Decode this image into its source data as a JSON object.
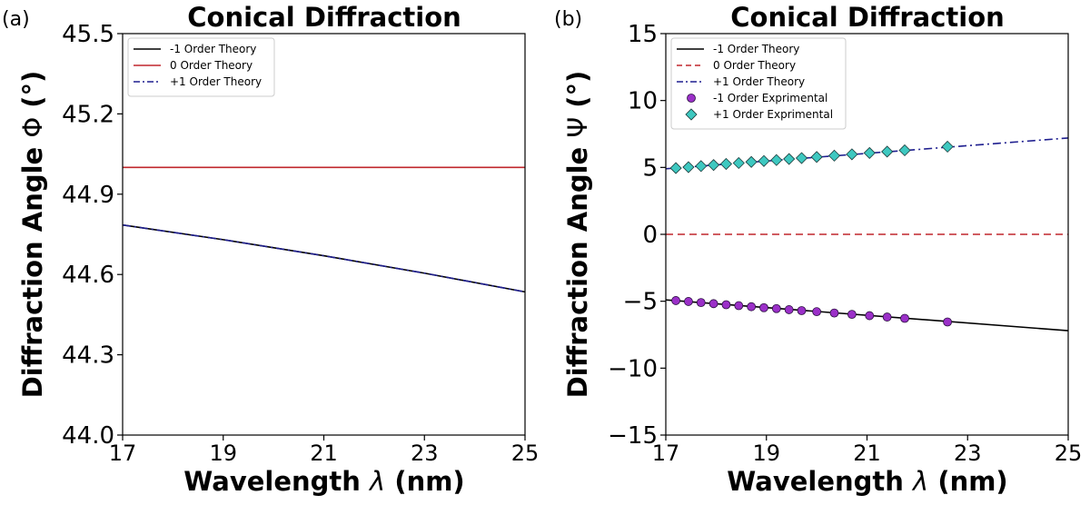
{
  "chart_data": [
    {
      "panel_label": "(a)",
      "type": "line",
      "title": "Conical Diffraction",
      "xlabel": "Wavelength",
      "xlabel_symbol": "λ",
      "xlabel_unit": "(nm)",
      "ylabel": "Diffraction Angle",
      "ylabel_symbol": "Φ",
      "ylabel_unit": "(°)",
      "xlim": [
        17,
        25
      ],
      "ylim": [
        44.0,
        45.5
      ],
      "xticks": [
        17,
        19,
        21,
        23,
        25
      ],
      "xtick_labels": [
        "17",
        "19",
        "21",
        "23",
        "25"
      ],
      "yticks": [
        44.0,
        44.3,
        44.6,
        44.9,
        45.2,
        45.5
      ],
      "ytick_labels": [
        "44.0",
        "44.3",
        "44.6",
        "44.9",
        "45.2",
        "45.5"
      ],
      "legend_position": "top-left",
      "series": [
        {
          "name": "-1 Order Theory",
          "color": "#000000",
          "style": "solid",
          "x": [
            17,
            19,
            21,
            23,
            25
          ],
          "y": [
            44.785,
            44.73,
            44.67,
            44.605,
            44.535
          ]
        },
        {
          "name": "0 Order Theory",
          "color": "#c0272d",
          "style": "solid",
          "x": [
            17,
            25
          ],
          "y": [
            45.0,
            45.0
          ]
        },
        {
          "name": "+1 Order Theory",
          "color": "#1f1f8f",
          "style": "dashdot",
          "x": [
            17,
            19,
            21,
            23,
            25
          ],
          "y": [
            44.785,
            44.73,
            44.67,
            44.605,
            44.535
          ]
        }
      ]
    },
    {
      "panel_label": "(b)",
      "type": "line",
      "title": "Conical Diffraction",
      "xlabel": "Wavelength",
      "xlabel_symbol": "λ",
      "xlabel_unit": "(nm)",
      "ylabel": "Diffraction Angle",
      "ylabel_symbol": "Ψ",
      "ylabel_unit": "(°)",
      "xlim": [
        17,
        25
      ],
      "ylim": [
        -15,
        15
      ],
      "xticks": [
        17,
        19,
        21,
        23,
        25
      ],
      "xtick_labels": [
        "17",
        "19",
        "21",
        "23",
        "25"
      ],
      "yticks": [
        -15,
        -10,
        -5,
        0,
        5,
        10,
        15
      ],
      "ytick_labels": [
        "−15",
        "−10",
        "−5",
        "0",
        "5",
        "10",
        "15"
      ],
      "legend_position": "top-left",
      "series": [
        {
          "name": "-1 Order Theory",
          "color": "#000000",
          "style": "solid",
          "x": [
            17,
            25
          ],
          "y": [
            -4.9,
            -7.2
          ]
        },
        {
          "name": "0 Order Theory",
          "color": "#c0272d",
          "style": "dashed",
          "x": [
            17,
            25
          ],
          "y": [
            0,
            0
          ]
        },
        {
          "name": "+1 Order Theory",
          "color": "#1f1f8f",
          "style": "dashdot",
          "x": [
            17,
            25
          ],
          "y": [
            4.9,
            7.2
          ]
        },
        {
          "name": "-1 Order Exprimental",
          "color": "#9b30c8",
          "style": "marker-circle",
          "x": [
            17.2,
            17.45,
            17.7,
            17.95,
            18.2,
            18.45,
            18.7,
            18.95,
            19.2,
            19.45,
            19.7,
            20.0,
            20.35,
            20.7,
            21.05,
            21.4,
            21.75,
            22.6
          ],
          "y": [
            -4.95,
            -5.02,
            -5.1,
            -5.18,
            -5.26,
            -5.33,
            -5.41,
            -5.48,
            -5.55,
            -5.63,
            -5.7,
            -5.78,
            -5.88,
            -5.98,
            -6.08,
            -6.18,
            -6.28,
            -6.55
          ]
        },
        {
          "name": "+1 Order Exprimental",
          "color": "#3ec8c0",
          "style": "marker-diamond",
          "x": [
            17.2,
            17.45,
            17.7,
            17.95,
            18.2,
            18.45,
            18.7,
            18.95,
            19.2,
            19.45,
            19.7,
            20.0,
            20.35,
            20.7,
            21.05,
            21.4,
            21.75,
            22.6
          ],
          "y": [
            4.95,
            5.02,
            5.1,
            5.18,
            5.26,
            5.33,
            5.41,
            5.48,
            5.55,
            5.63,
            5.7,
            5.78,
            5.88,
            5.98,
            6.08,
            6.18,
            6.28,
            6.55
          ]
        }
      ]
    }
  ]
}
